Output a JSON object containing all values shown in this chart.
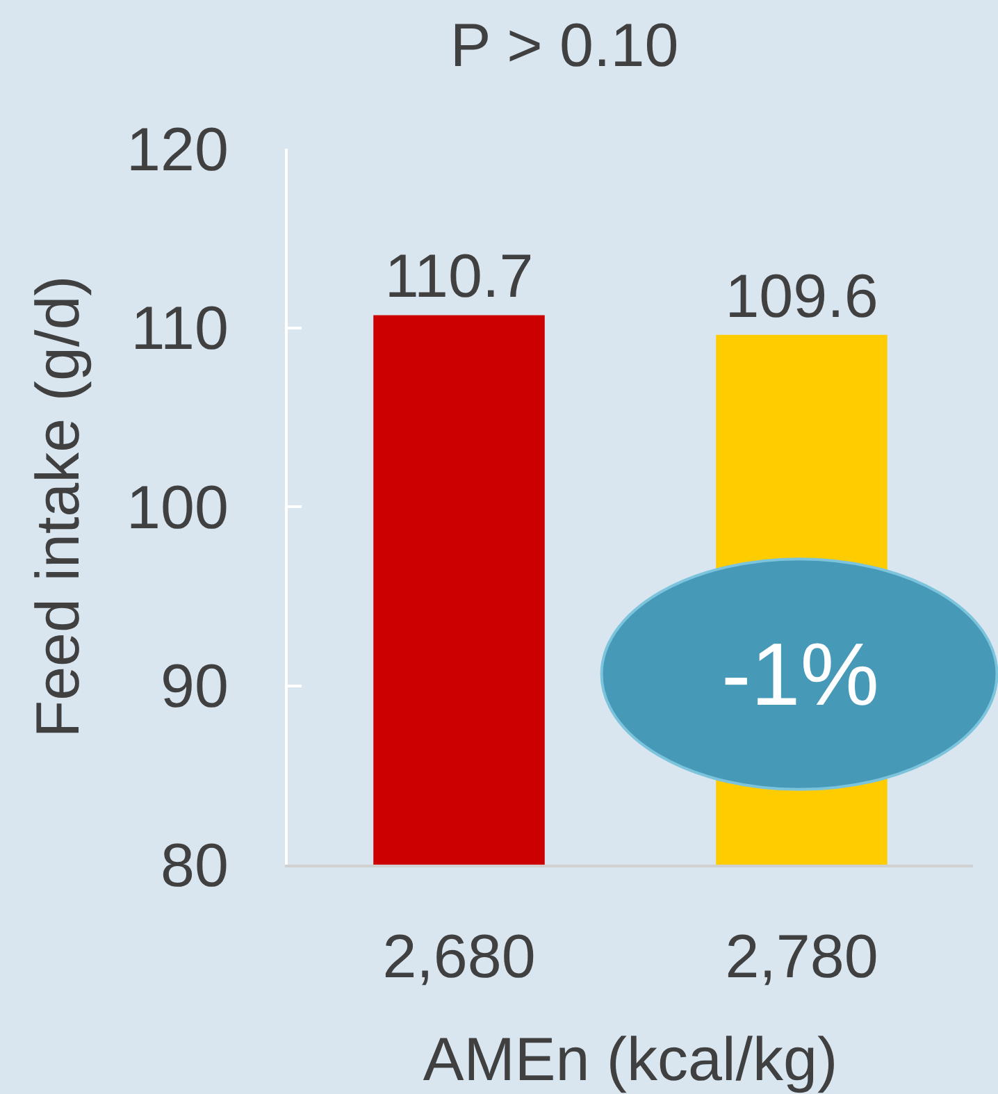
{
  "chart_data": {
    "type": "bar",
    "title": "P > 0.10",
    "xlabel": "AMEn (kcal/kg)",
    "ylabel": "Feed intake (g/d)",
    "categories": [
      "2,680",
      "2,780"
    ],
    "values": [
      110.7,
      109.6
    ],
    "colors": [
      "#cc0000",
      "#ffcc00"
    ],
    "ylim": [
      80,
      120
    ],
    "yticks": [
      80,
      90,
      100,
      110,
      120
    ],
    "data_labels": true,
    "annotations": [
      "-1%"
    ]
  }
}
